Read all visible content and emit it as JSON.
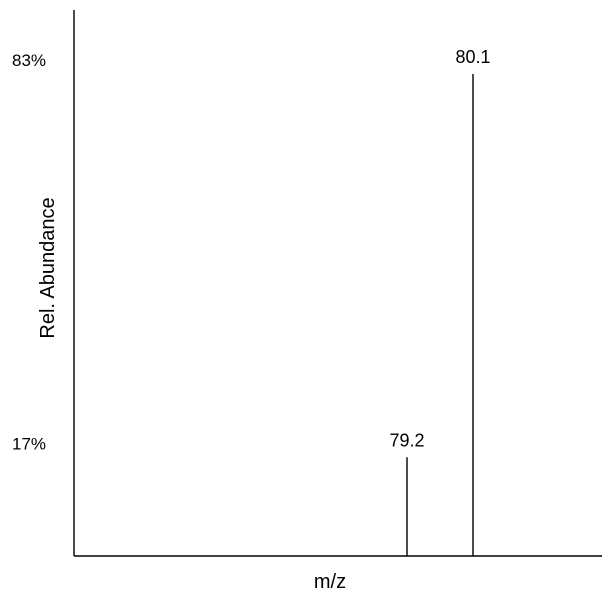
{
  "chart_data": {
    "type": "bar",
    "subtype": "mass-spectrum-stick",
    "xlabel": "m/z",
    "ylabel": "Rel. Abundance",
    "x_ticks_shown": false,
    "y_tick_labels": [
      "83%",
      "17%"
    ],
    "y_tick_values": [
      83,
      17
    ],
    "grid": false,
    "legend": "none",
    "peaks": [
      {
        "mz": 79.2,
        "label": "79.2",
        "abundance": 17
      },
      {
        "mz": 80.1,
        "label": "80.1",
        "abundance": 83
      }
    ],
    "colors": {
      "peaks": "#000000",
      "axes": "#000000"
    }
  }
}
